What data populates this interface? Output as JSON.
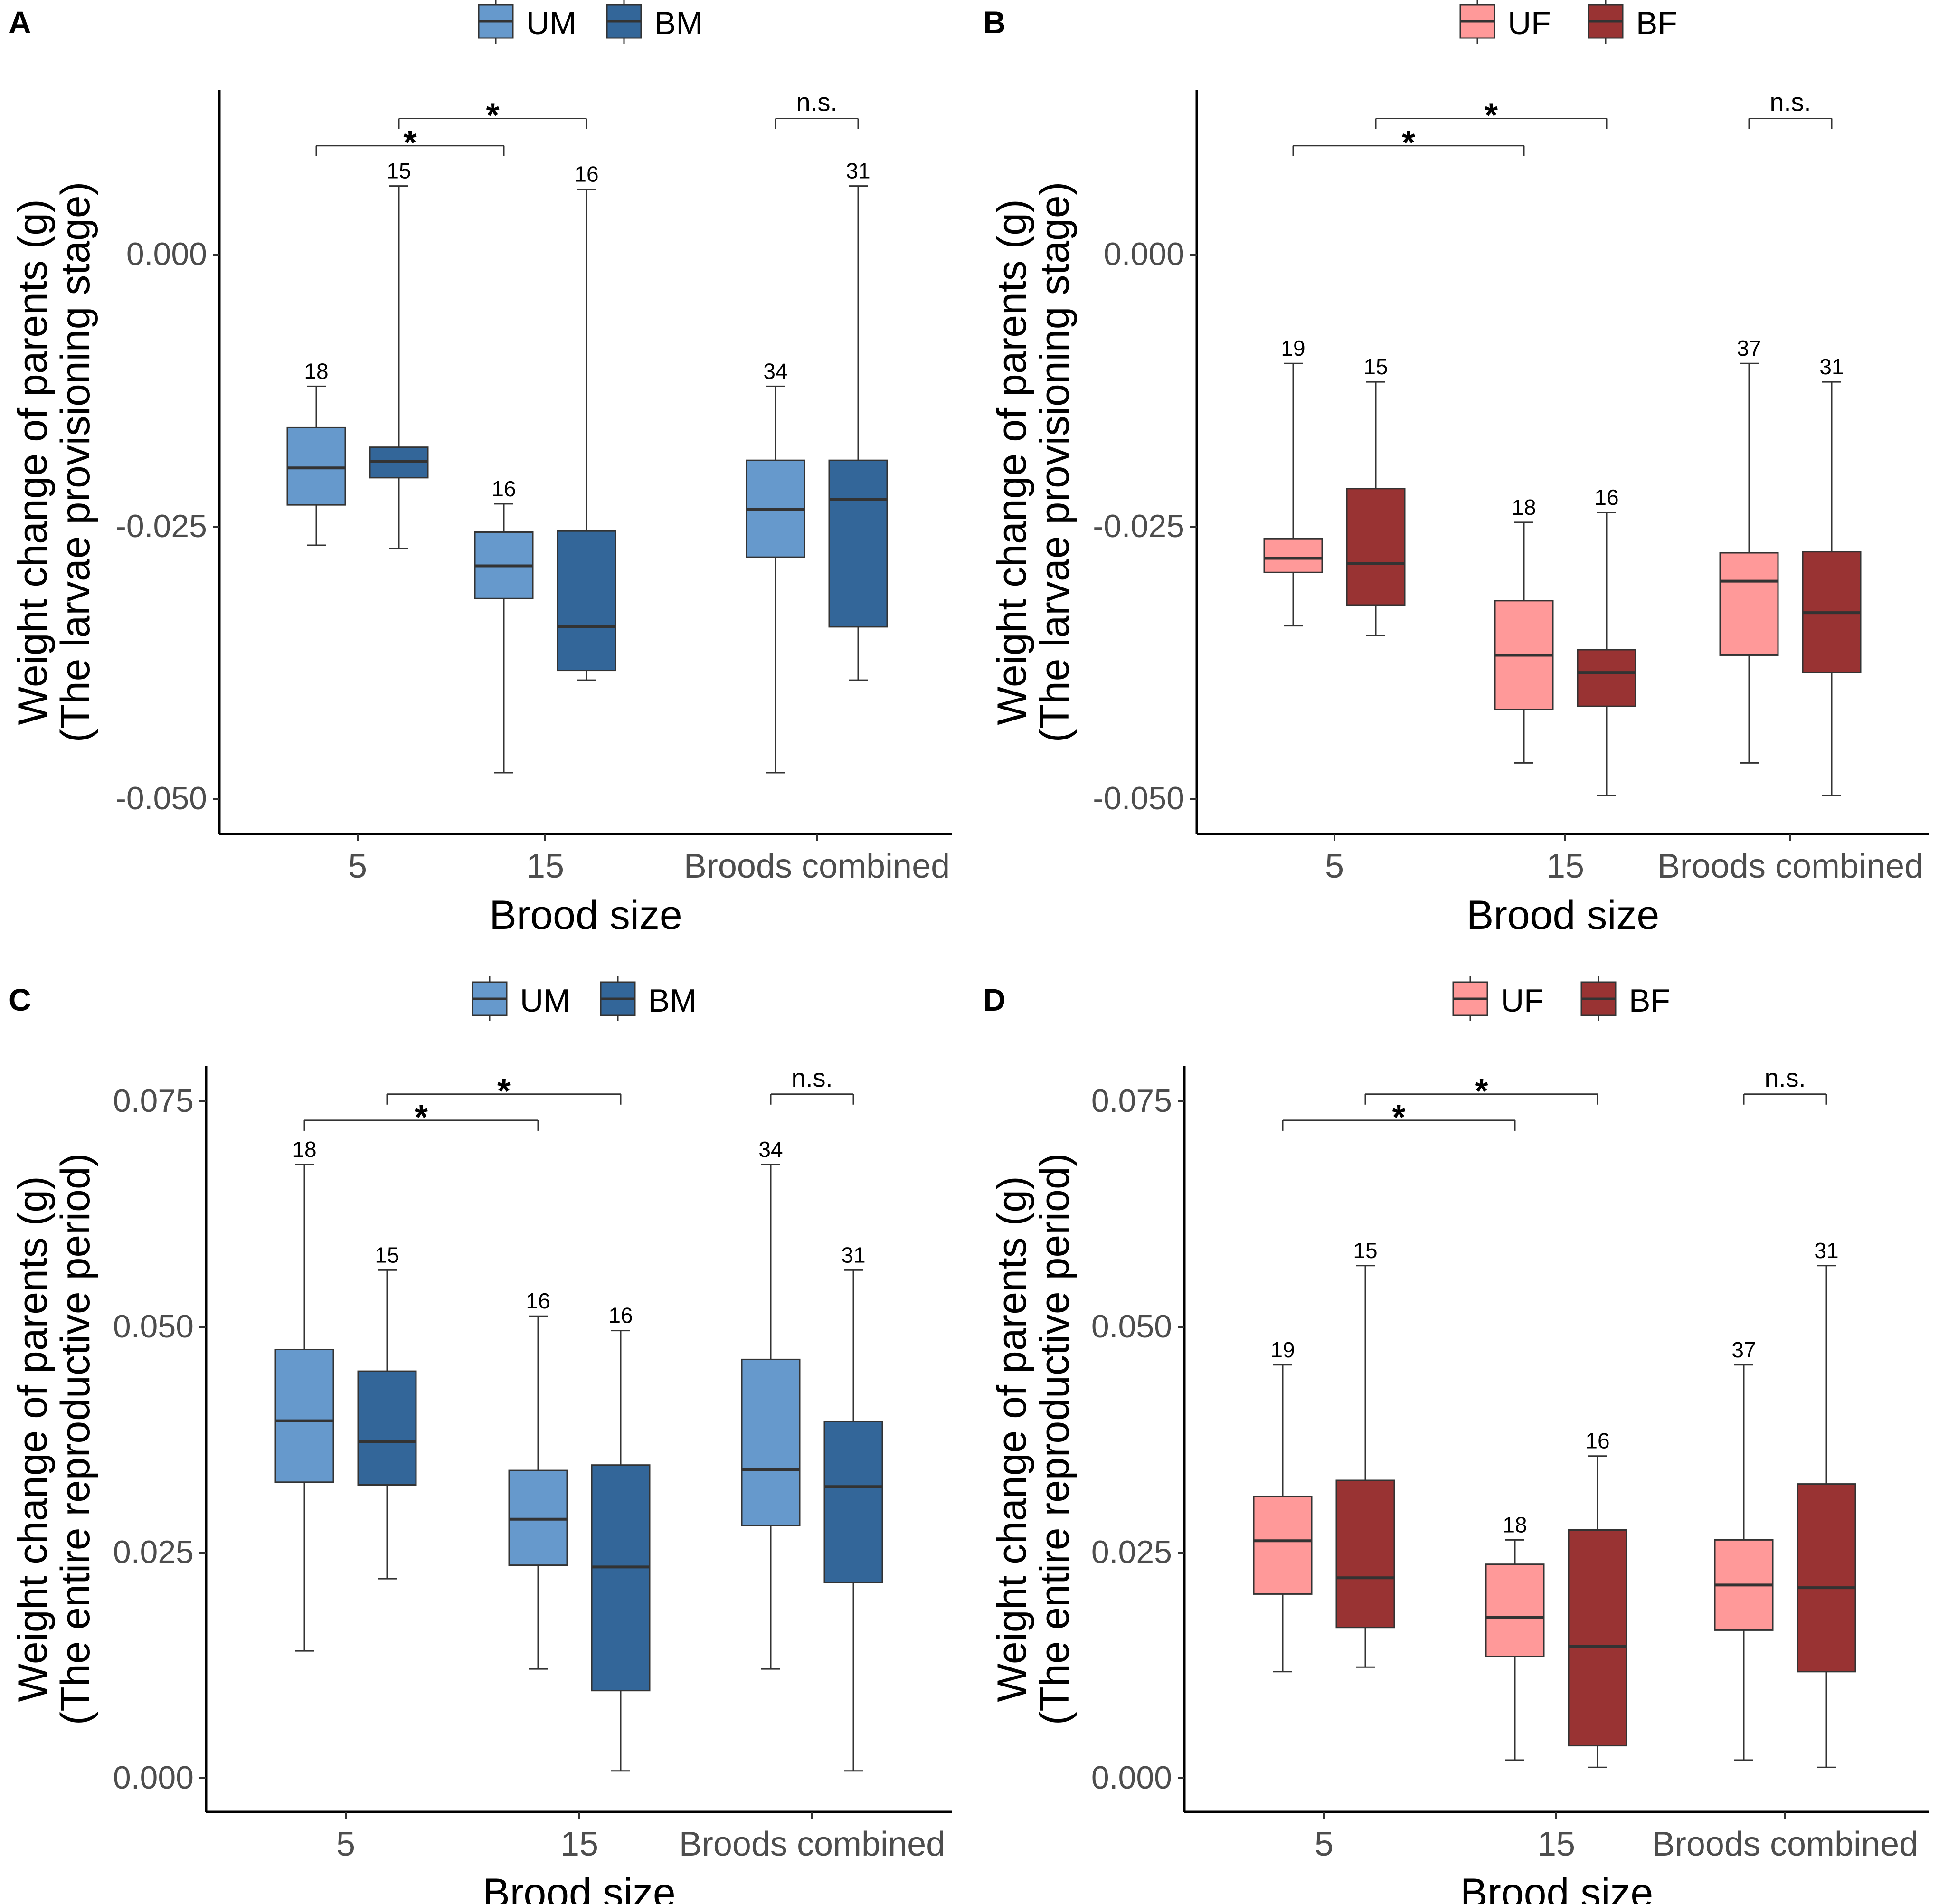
{
  "figure": {
    "xlabel": "Brood size",
    "categories": [
      "5",
      "15",
      "Broods combined"
    ]
  },
  "chart_data": [
    {
      "panel": "A",
      "type": "box",
      "title": "",
      "xlabel": "Brood size",
      "ylabel_line1": "Weight change of parents (g)",
      "ylabel_line2": "(The larvae provisioning stage)",
      "categories": [
        "5",
        "15",
        "Broods combined"
      ],
      "ylim": [
        -0.053,
        0.015
      ],
      "yticks": [
        -0.05,
        -0.025,
        0.0
      ],
      "ytick_labels": [
        "-0.050",
        "-0.025",
        "0.000"
      ],
      "legend_position": "top-center",
      "series": [
        {
          "name": "UM",
          "color": "#6699cc",
          "boxes": [
            {
              "category": "5",
              "min": -0.0267,
              "q1": -0.023,
              "median": -0.0196,
              "q3": -0.0159,
              "max": -0.0121,
              "n": "18"
            },
            {
              "category": "15",
              "min": -0.0476,
              "q1": -0.0316,
              "median": -0.0286,
              "q3": -0.0255,
              "max": -0.0229,
              "n": "16"
            },
            {
              "category": "Broods combined",
              "min": -0.0476,
              "q1": -0.0278,
              "median": -0.0234,
              "q3": -0.0189,
              "max": -0.0121,
              "n": "34"
            }
          ]
        },
        {
          "name": "BM",
          "color": "#336699",
          "boxes": [
            {
              "category": "5",
              "min": -0.027,
              "q1": -0.0205,
              "median": -0.019,
              "q3": -0.0177,
              "max": 0.0063,
              "n": "15"
            },
            {
              "category": "15",
              "min": -0.0391,
              "q1": -0.0382,
              "median": -0.0342,
              "q3": -0.0254,
              "max": 0.006,
              "n": "16"
            },
            {
              "category": "Broods combined",
              "min": -0.0391,
              "q1": -0.0342,
              "median": -0.0225,
              "q3": -0.0189,
              "max": 0.0063,
              "n": "31"
            }
          ]
        }
      ],
      "brackets": [
        {
          "from": "UM 5",
          "to": "UM 15",
          "label": "*",
          "y": 0.01
        },
        {
          "from": "BM 5",
          "to": "BM 15",
          "label": "*",
          "y": 0.0125
        },
        {
          "from": "UM Broods combined",
          "to": "BM Broods combined",
          "label": "n.s.",
          "y": 0.0125
        }
      ]
    },
    {
      "panel": "B",
      "type": "box",
      "title": "",
      "xlabel": "Brood size",
      "ylabel_line1": "Weight change of parents (g)",
      "ylabel_line2": "(The larvae provisioning stage)",
      "categories": [
        "5",
        "15",
        "Broods combined"
      ],
      "ylim": [
        -0.053,
        0.015
      ],
      "yticks": [
        -0.05,
        -0.025,
        0.0
      ],
      "ytick_labels": [
        "-0.050",
        "-0.025",
        "0.000"
      ],
      "legend_position": "top-center",
      "series": [
        {
          "name": "UF",
          "color": "#ff9999",
          "boxes": [
            {
              "category": "5",
              "min": -0.0341,
              "q1": -0.0292,
              "median": -0.0279,
              "q3": -0.0261,
              "max": -0.01,
              "n": "19"
            },
            {
              "category": "15",
              "min": -0.0467,
              "q1": -0.0418,
              "median": -0.0368,
              "q3": -0.0318,
              "max": -0.0246,
              "n": "18"
            },
            {
              "category": "Broods combined",
              "min": -0.0467,
              "q1": -0.0368,
              "median": -0.03,
              "q3": -0.0274,
              "max": -0.01,
              "n": "37"
            }
          ]
        },
        {
          "name": "BF",
          "color": "#993333",
          "boxes": [
            {
              "category": "5",
              "min": -0.035,
              "q1": -0.0322,
              "median": -0.0284,
              "q3": -0.0215,
              "max": -0.0117,
              "n": "15"
            },
            {
              "category": "15",
              "min": -0.0497,
              "q1": -0.0415,
              "median": -0.0384,
              "q3": -0.0363,
              "max": -0.0237,
              "n": "16"
            },
            {
              "category": "Broods combined",
              "min": -0.0497,
              "q1": -0.0384,
              "median": -0.0329,
              "q3": -0.0273,
              "max": -0.0117,
              "n": "31"
            }
          ]
        }
      ],
      "brackets": [
        {
          "from": "UF 5",
          "to": "UF 15",
          "label": "*",
          "y": 0.01
        },
        {
          "from": "BF 5",
          "to": "BF 15",
          "label": "*",
          "y": 0.0125
        },
        {
          "from": "UF Broods combined",
          "to": "BF Broods combined",
          "label": "n.s.",
          "y": 0.0125
        }
      ]
    },
    {
      "panel": "C",
      "type": "box",
      "title": "",
      "xlabel": "Brood size",
      "ylabel_line1": "Weight change of parents (g)",
      "ylabel_line2": "(The entire reproductive period)",
      "categories": [
        "5",
        "15",
        "Broods combined"
      ],
      "ylim": [
        -0.004,
        0.079
      ],
      "yticks": [
        0.0,
        0.025,
        0.05,
        0.075
      ],
      "ytick_labels": [
        "0.000",
        "0.025",
        "0.050",
        "0.075"
      ],
      "legend_position": "top-center",
      "series": [
        {
          "name": "UM",
          "color": "#6699cc",
          "boxes": [
            {
              "category": "5",
              "min": 0.0141,
              "q1": 0.0328,
              "median": 0.0396,
              "q3": 0.0475,
              "max": 0.068,
              "n": "18"
            },
            {
              "category": "15",
              "min": 0.0121,
              "q1": 0.0236,
              "median": 0.0287,
              "q3": 0.0341,
              "max": 0.0512,
              "n": "16"
            },
            {
              "category": "Broods combined",
              "min": 0.0121,
              "q1": 0.028,
              "median": 0.0342,
              "q3": 0.0464,
              "max": 0.068,
              "n": "34"
            }
          ]
        },
        {
          "name": "BM",
          "color": "#336699",
          "boxes": [
            {
              "category": "5",
              "min": 0.0221,
              "q1": 0.0325,
              "median": 0.0373,
              "q3": 0.0451,
              "max": 0.0563,
              "n": "15"
            },
            {
              "category": "15",
              "min": 0.0008,
              "q1": 0.0097,
              "median": 0.0234,
              "q3": 0.0347,
              "max": 0.0496,
              "n": "16"
            },
            {
              "category": "Broods combined",
              "min": 0.0008,
              "q1": 0.0217,
              "median": 0.0323,
              "q3": 0.0395,
              "max": 0.0563,
              "n": "31"
            }
          ]
        }
      ],
      "brackets": [
        {
          "from": "UM 5",
          "to": "UM 15",
          "label": "*",
          "y": 0.0729
        },
        {
          "from": "BM 5",
          "to": "BM 15",
          "label": "*",
          "y": 0.0758
        },
        {
          "from": "UM Broods combined",
          "to": "BM Broods combined",
          "label": "n.s.",
          "y": 0.0758
        }
      ]
    },
    {
      "panel": "D",
      "type": "box",
      "title": "",
      "xlabel": "Brood size",
      "ylabel_line1": "Weight change of parents (g)",
      "ylabel_line2": "(The entire reproductive period)",
      "categories": [
        "5",
        "15",
        "Broods combined"
      ],
      "ylim": [
        -0.004,
        0.079
      ],
      "yticks": [
        0.0,
        0.025,
        0.05,
        0.075
      ],
      "ytick_labels": [
        "0.000",
        "0.025",
        "0.050",
        "0.075"
      ],
      "legend_position": "top-center",
      "series": [
        {
          "name": "UF",
          "color": "#ff9999",
          "boxes": [
            {
              "category": "5",
              "min": 0.0118,
              "q1": 0.0204,
              "median": 0.0263,
              "q3": 0.0312,
              "max": 0.0458,
              "n": "19"
            },
            {
              "category": "15",
              "min": 0.002,
              "q1": 0.0135,
              "median": 0.0178,
              "q3": 0.0237,
              "max": 0.0264,
              "n": "18"
            },
            {
              "category": "Broods combined",
              "min": 0.002,
              "q1": 0.0164,
              "median": 0.0214,
              "q3": 0.0264,
              "max": 0.0458,
              "n": "37"
            }
          ]
        },
        {
          "name": "BF",
          "color": "#993333",
          "boxes": [
            {
              "category": "5",
              "min": 0.0123,
              "q1": 0.0167,
              "median": 0.0222,
              "q3": 0.033,
              "max": 0.0568,
              "n": "15"
            },
            {
              "category": "15",
              "min": 0.0012,
              "q1": 0.0036,
              "median": 0.0146,
              "q3": 0.0275,
              "max": 0.0357,
              "n": "16"
            },
            {
              "category": "Broods combined",
              "min": 0.0012,
              "q1": 0.0118,
              "median": 0.0211,
              "q3": 0.0326,
              "max": 0.0568,
              "n": "31"
            }
          ]
        }
      ],
      "brackets": [
        {
          "from": "UF 5",
          "to": "UF 15",
          "label": "*",
          "y": 0.0729
        },
        {
          "from": "BF 5",
          "to": "BF 15",
          "label": "*",
          "y": 0.0758
        },
        {
          "from": "UF Broods combined",
          "to": "BF Broods combined",
          "label": "n.s.",
          "y": 0.0758
        }
      ]
    }
  ]
}
